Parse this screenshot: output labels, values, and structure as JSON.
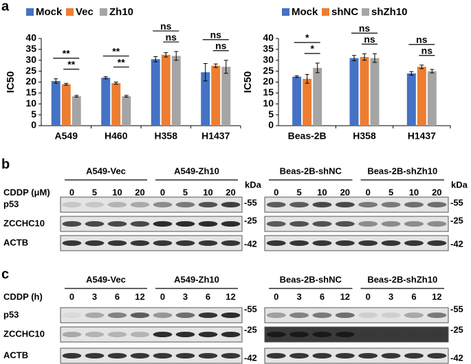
{
  "chart_data": [
    {
      "type": "bar",
      "y_label": "IC50",
      "categories": [
        "A549",
        "H460",
        "H358",
        "H1437"
      ],
      "series": [
        {
          "name": "Mock",
          "color": "#4472c4",
          "values": [
            20.5,
            22,
            30.5,
            24.5
          ],
          "errors": [
            1,
            0.5,
            1.2,
            4
          ]
        },
        {
          "name": "Vec",
          "color": "#ed7d31",
          "values": [
            19,
            19.5,
            32.5,
            27.5
          ],
          "errors": [
            0.4,
            0.5,
            1,
            0.8
          ]
        },
        {
          "name": "Zh10",
          "color": "#a5a5a5",
          "values": [
            13.5,
            13.5,
            32,
            27
          ],
          "errors": [
            0.4,
            0.4,
            2,
            3
          ]
        }
      ],
      "significance": [
        [
          "**",
          "**"
        ],
        [
          "**",
          "**"
        ],
        [
          "ns",
          "ns"
        ],
        [
          "ns",
          "ns"
        ]
      ],
      "ylim": [
        0,
        40
      ],
      "yticks": [
        0,
        5,
        10,
        15,
        20,
        25,
        30,
        35,
        40
      ]
    },
    {
      "type": "bar",
      "y_label": "IC50",
      "categories": [
        "Beas-2B",
        "H358",
        "H1437"
      ],
      "series": [
        {
          "name": "Mock",
          "color": "#4472c4",
          "values": [
            22.5,
            31,
            24
          ],
          "errors": [
            0.4,
            1.2,
            0.8
          ]
        },
        {
          "name": "shNC",
          "color": "#ed7d31",
          "values": [
            21.5,
            31.5,
            27
          ],
          "errors": [
            2,
            1.5,
            0.8
          ]
        },
        {
          "name": "shZh10",
          "color": "#a5a5a5",
          "values": [
            26.5,
            31,
            25
          ],
          "errors": [
            2.2,
            2,
            0.8
          ]
        }
      ],
      "significance": [
        [
          "*",
          "*"
        ],
        [
          "ns",
          "ns"
        ],
        [
          "ns",
          "ns"
        ]
      ],
      "ylim": [
        0,
        40
      ],
      "yticks": [
        0,
        5,
        10,
        15,
        20,
        25,
        30,
        35,
        40
      ]
    }
  ],
  "panel_a": "a",
  "blot_b": {
    "panel": "b",
    "treatment": "CDDP (μM)",
    "rows": [
      "p53",
      "ZCCHC10",
      "ACTB"
    ],
    "left": {
      "groups": [
        {
          "name": "A549-Vec",
          "lanes": [
            0,
            5,
            10,
            20
          ]
        },
        {
          "name": "A549-Zh10",
          "lanes": [
            0,
            5,
            10,
            20
          ]
        }
      ],
      "unit": "kDa",
      "markers": [
        "-55",
        "-25",
        "-42"
      ]
    },
    "right": {
      "groups": [
        {
          "name": "Beas-2B-shNC",
          "lanes": [
            0,
            5,
            10,
            20
          ]
        },
        {
          "name": "Beas-2B-shZh10",
          "lanes": [
            0,
            5,
            10,
            20
          ]
        }
      ],
      "unit": "kDa",
      "markers": [
        "-55",
        "-25",
        "-42"
      ]
    }
  },
  "blot_c": {
    "panel": "c",
    "treatment": "CDDP (h)",
    "rows": [
      "p53",
      "ZCCHC10",
      "ACTB"
    ],
    "left": {
      "groups": [
        {
          "name": "A549-Vec",
          "lanes": [
            0,
            3,
            6,
            12
          ]
        },
        {
          "name": "A549-Zh10",
          "lanes": [
            0,
            3,
            6,
            12
          ]
        }
      ],
      "markers": [
        "-55",
        "-25",
        "-42"
      ]
    },
    "right": {
      "groups": [
        {
          "name": "Beas-2B-shNC",
          "lanes": [
            0,
            3,
            6,
            12
          ]
        },
        {
          "name": "Beas-2B-shZh10",
          "lanes": [
            0,
            3,
            6,
            12
          ]
        }
      ],
      "markers": [
        "-55",
        "-25",
        "-42"
      ]
    }
  }
}
